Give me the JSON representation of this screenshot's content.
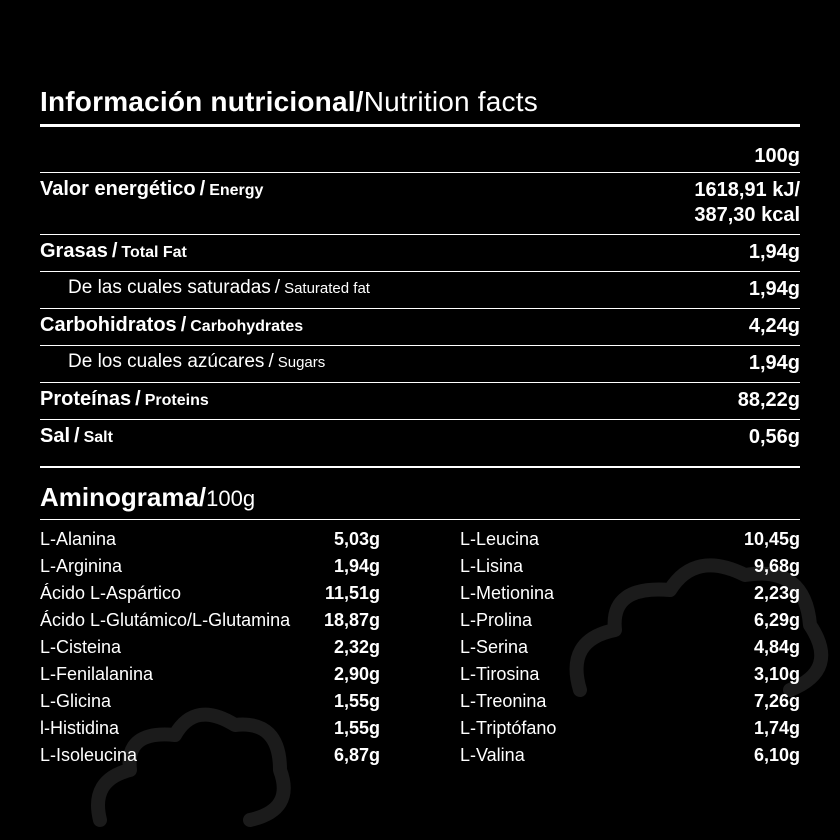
{
  "colors": {
    "bg": "#000000",
    "fg": "#ffffff",
    "watermark": "#1b1b1b"
  },
  "title": {
    "es": "Información nutricional",
    "en": "Nutrition facts"
  },
  "serving_header": "100g",
  "nutrition": [
    {
      "es": "Valor energético",
      "en": "Energy",
      "value": "1618,91 kJ/\n387,30 kcal",
      "indent": false
    },
    {
      "es": "Grasas",
      "en": "Total Fat",
      "value": "1,94g",
      "indent": false
    },
    {
      "es": "De las cuales saturadas",
      "en": "Saturated fat",
      "value": "1,94g",
      "indent": true
    },
    {
      "es": "Carbohidratos",
      "en": "Carbohydrates",
      "value": "4,24g",
      "indent": false
    },
    {
      "es": "De los cuales azúcares",
      "en": "Sugars",
      "value": "1,94g",
      "indent": true
    },
    {
      "es": "Proteínas",
      "en": "Proteins",
      "value": "88,22g",
      "indent": false
    },
    {
      "es": "Sal",
      "en": "Salt",
      "value": "0,56g",
      "indent": false
    }
  ],
  "amino_title": {
    "main": "Aminograma",
    "sub": "100g"
  },
  "amino_left": [
    {
      "name": "L-Alanina",
      "value": "5,03g"
    },
    {
      "name": "L-Arginina",
      "value": "1,94g"
    },
    {
      "name": "Ácido L-Aspártico",
      "value": "11,51g"
    },
    {
      "name": "Ácido L-Glutámico/L-Glutamina",
      "value": "18,87g"
    },
    {
      "name": "L-Cisteina",
      "value": "2,32g"
    },
    {
      "name": "L-Fenilalanina",
      "value": "2,90g"
    },
    {
      "name": "L-Glicina",
      "value": "1,55g"
    },
    {
      "name": "l-Histidina",
      "value": "1,55g"
    },
    {
      "name": "L-Isoleucina",
      "value": "6,87g"
    }
  ],
  "amino_right": [
    {
      "name": "L-Leucina",
      "value": "10,45g"
    },
    {
      "name": "L-Lisina",
      "value": "9,68g"
    },
    {
      "name": "L-Metionina",
      "value": "2,23g"
    },
    {
      "name": "L-Prolina",
      "value": "6,29g"
    },
    {
      "name": "L-Serina",
      "value": "4,84g"
    },
    {
      "name": "L-Tirosina",
      "value": "3,10g"
    },
    {
      "name": "L-Treonina",
      "value": "7,26g"
    },
    {
      "name": "L-Triptófano",
      "value": "1,74g"
    },
    {
      "name": "L-Valina",
      "value": "6,10g"
    }
  ]
}
